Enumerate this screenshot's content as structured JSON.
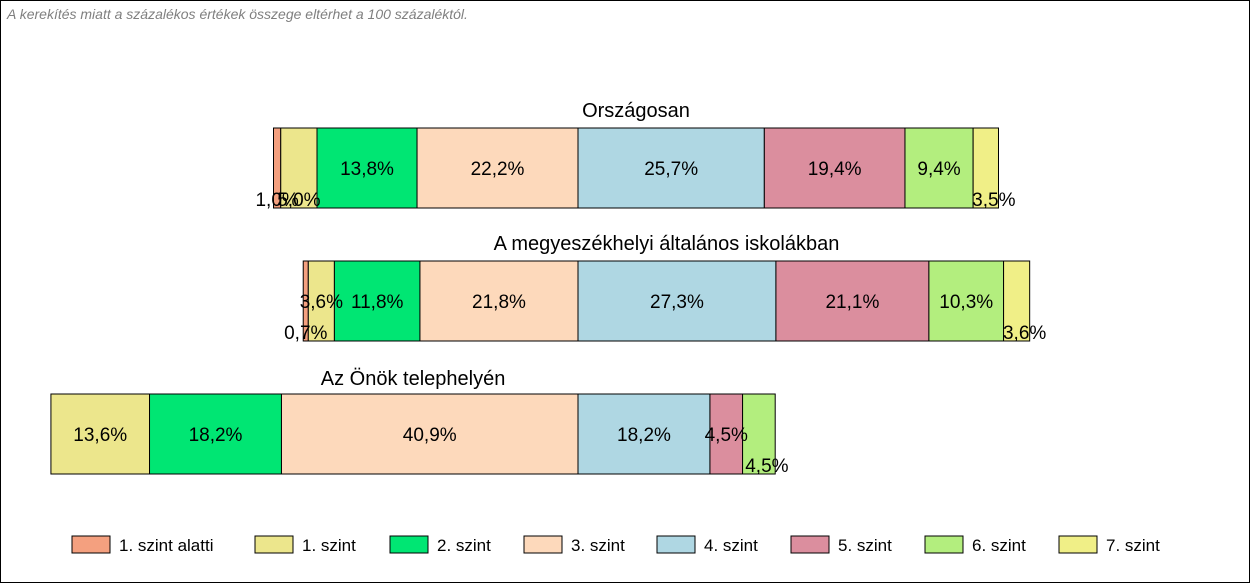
{
  "note": "A kerekítés miatt a  százalékos értékek összege eltérhet a 100 százaléktól.",
  "chart_data": {
    "type": "bar",
    "orientation": "horizontal",
    "stacked": true,
    "unit": "%",
    "legend_position": "bottom",
    "grid": false,
    "series": [
      {
        "name": "1. szint alatti",
        "color": "#f4a07f"
      },
      {
        "name": "1. szint",
        "color": "#ece68c"
      },
      {
        "name": "2. szint",
        "color": "#00e673"
      },
      {
        "name": "3. szint",
        "color": "#fdd9bb"
      },
      {
        "name": "4. szint",
        "color": "#afd7e3"
      },
      {
        "name": "5. szint",
        "color": "#db8e9e"
      },
      {
        "name": "6. szint",
        "color": "#b3ee7e"
      },
      {
        "name": "7. szint",
        "color": "#f0ef87"
      }
    ],
    "groups": [
      {
        "title": "Országosan",
        "values": [
          1.0,
          5.0,
          13.8,
          22.2,
          25.7,
          19.4,
          9.4,
          3.5
        ],
        "labels": [
          "1,0%",
          "5,0%",
          "13,8%",
          "22,2%",
          "25,7%",
          "19,4%",
          "9,4%",
          "3,5%"
        ]
      },
      {
        "title": "A megyeszékhelyi általános iskolákban",
        "values": [
          0.7,
          3.6,
          11.8,
          21.8,
          27.3,
          21.1,
          10.3,
          3.6
        ],
        "labels": [
          "0,7%",
          "3,6%",
          "11,8%",
          "21,8%",
          "27,3%",
          "21,1%",
          "10,3%",
          "3,6%"
        ]
      },
      {
        "title": "Az Önök telephelyén",
        "values": [
          0,
          13.6,
          18.2,
          40.9,
          18.2,
          4.5,
          4.5,
          0
        ],
        "labels": [
          "",
          "13,6%",
          "18,2%",
          "40,9%",
          "18,2%",
          "4,5%",
          "4,5%",
          ""
        ]
      }
    ]
  }
}
